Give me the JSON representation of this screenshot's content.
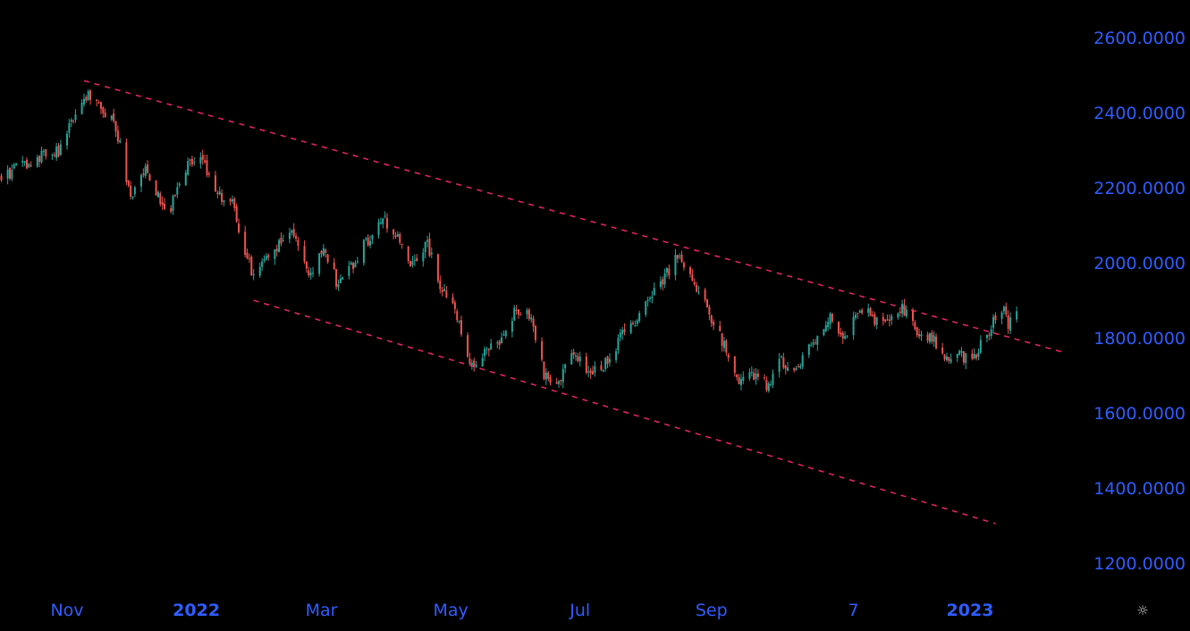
{
  "chart_data": {
    "type": "candlestick",
    "y_axis": {
      "ticks": [
        "2600.0000",
        "2400.0000",
        "2200.0000",
        "2000.0000",
        "1800.0000",
        "1600.0000",
        "1400.0000",
        "1200.0000"
      ],
      "tick_values": [
        2600,
        2400,
        2200,
        2000,
        1800,
        1600,
        1400,
        1200
      ],
      "position": "right"
    },
    "x_axis": {
      "ticks": [
        {
          "label": "Nov",
          "emphasis": false,
          "date": "2021-11-01"
        },
        {
          "label": "2022",
          "emphasis": true,
          "date": "2022-01-01"
        },
        {
          "label": "Mar",
          "emphasis": false,
          "date": "2022-03-01"
        },
        {
          "label": "May",
          "emphasis": false,
          "date": "2022-05-01"
        },
        {
          "label": "Jul",
          "emphasis": false,
          "date": "2022-07-01"
        },
        {
          "label": "Sep",
          "emphasis": false,
          "date": "2022-09-01"
        },
        {
          "label": "7",
          "emphasis": false,
          "date": "2022-11-07"
        },
        {
          "label": "2023",
          "emphasis": true,
          "date": "2023-01-01"
        }
      ]
    },
    "price_path": [
      [
        "2021-10-01",
        2230
      ],
      [
        "2021-10-08",
        2250
      ],
      [
        "2021-10-15",
        2270
      ],
      [
        "2021-10-22",
        2290
      ],
      [
        "2021-10-29",
        2300
      ],
      [
        "2021-11-05",
        2400
      ],
      [
        "2021-11-09",
        2450
      ],
      [
        "2021-11-15",
        2420
      ],
      [
        "2021-11-22",
        2380
      ],
      [
        "2021-11-26",
        2310
      ],
      [
        "2021-12-01",
        2160
      ],
      [
        "2021-12-08",
        2260
      ],
      [
        "2021-12-15",
        2160
      ],
      [
        "2021-12-20",
        2150
      ],
      [
        "2021-12-28",
        2260
      ],
      [
        "2022-01-04",
        2280
      ],
      [
        "2022-01-10",
        2180
      ],
      [
        "2022-01-18",
        2160
      ],
      [
        "2022-01-24",
        2030
      ],
      [
        "2022-01-28",
        1960
      ],
      [
        "2022-02-02",
        2000
      ],
      [
        "2022-02-09",
        2050
      ],
      [
        "2022-02-16",
        2080
      ],
      [
        "2022-02-24",
        1960
      ],
      [
        "2022-03-02",
        2050
      ],
      [
        "2022-03-08",
        1950
      ],
      [
        "2022-03-16",
        2000
      ],
      [
        "2022-03-24",
        2070
      ],
      [
        "2022-03-30",
        2120
      ],
      [
        "2022-04-06",
        2060
      ],
      [
        "2022-04-12",
        2000
      ],
      [
        "2022-04-20",
        2050
      ],
      [
        "2022-04-26",
        1940
      ],
      [
        "2022-05-03",
        1880
      ],
      [
        "2022-05-11",
        1720
      ],
      [
        "2022-05-17",
        1760
      ],
      [
        "2022-05-24",
        1780
      ],
      [
        "2022-06-01",
        1880
      ],
      [
        "2022-06-08",
        1860
      ],
      [
        "2022-06-14",
        1700
      ],
      [
        "2022-06-20",
        1680
      ],
      [
        "2022-06-28",
        1760
      ],
      [
        "2022-07-05",
        1700
      ],
      [
        "2022-07-12",
        1720
      ],
      [
        "2022-07-20",
        1800
      ],
      [
        "2022-07-27",
        1840
      ],
      [
        "2022-08-03",
        1900
      ],
      [
        "2022-08-10",
        1960
      ],
      [
        "2022-08-16",
        2020
      ],
      [
        "2022-08-23",
        1960
      ],
      [
        "2022-08-30",
        1880
      ],
      [
        "2022-09-07",
        1780
      ],
      [
        "2022-09-13",
        1680
      ],
      [
        "2022-09-20",
        1700
      ],
      [
        "2022-09-28",
        1670
      ],
      [
        "2022-10-04",
        1740
      ],
      [
        "2022-10-12",
        1720
      ],
      [
        "2022-10-20",
        1800
      ],
      [
        "2022-10-27",
        1860
      ],
      [
        "2022-11-02",
        1800
      ],
      [
        "2022-11-10",
        1880
      ],
      [
        "2022-11-17",
        1850
      ],
      [
        "2022-11-24",
        1860
      ],
      [
        "2022-11-30",
        1880
      ],
      [
        "2022-12-07",
        1820
      ],
      [
        "2022-12-14",
        1800
      ],
      [
        "2022-12-20",
        1740
      ],
      [
        "2022-12-28",
        1750
      ],
      [
        "2023-01-04",
        1760
      ],
      [
        "2023-01-10",
        1820
      ],
      [
        "2023-01-16",
        1880
      ],
      [
        "2023-01-19",
        1840
      ],
      [
        "2023-01-23",
        1880
      ]
    ],
    "trendlines": [
      {
        "style": "dashed",
        "color": "#e0245e",
        "points": [
          [
            "2021-11-09",
            2485
          ],
          [
            "2023-02-15",
            1760
          ]
        ]
      },
      {
        "style": "dashed",
        "color": "#e0245e",
        "points": [
          [
            "2022-01-28",
            1900
          ],
          [
            "2023-01-13",
            1305
          ]
        ]
      }
    ],
    "colors": {
      "up": "#26a69a",
      "down": "#ef5350",
      "trendline": "#e0245e",
      "axis_text": "#2f5cff",
      "background": "#000000"
    },
    "grid": false
  },
  "controls": {
    "settings_icon": "gear-icon",
    "settings_glyph": "☼"
  }
}
